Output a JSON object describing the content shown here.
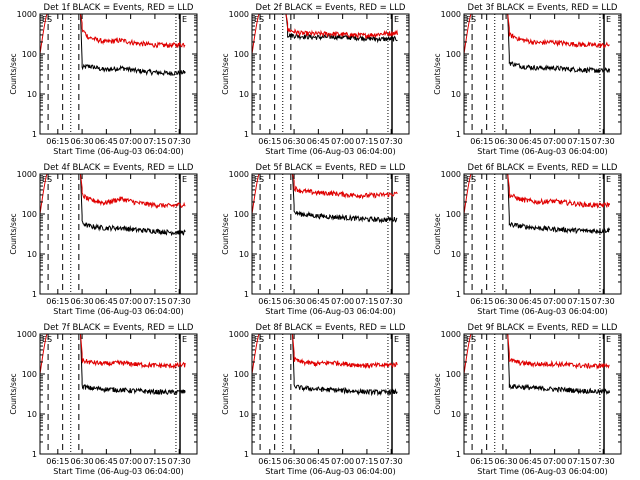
{
  "figure": {
    "x_axis_label": "Start Time (06-Aug-03 06:04:00)",
    "y_axis_label": "Counts/sec",
    "x_tick_labels": [
      "06:15",
      "06:30",
      "06:45",
      "07:00",
      "07:15",
      "07:30"
    ],
    "y_tick_labels": [
      "1",
      "10",
      "100",
      "1000"
    ],
    "marker_start": "ES",
    "marker_end": "E",
    "colors": {
      "events": "#000000",
      "lld": "#e00000",
      "axes": "#000000"
    }
  },
  "chart_data": [
    {
      "type": "line",
      "title": "Det 1f  BLACK = Events, RED = LLD",
      "xlabel": "Start Time (06-Aug-03 06:04:00)",
      "ylabel": "Counts/sec",
      "yscale": "log",
      "ylim": [
        1,
        1000
      ],
      "xlim": [
        "06:04",
        "07:41"
      ],
      "series": [
        {
          "name": "Events",
          "color": "black",
          "x_minutes": [
            26,
            30,
            40,
            50,
            60,
            70,
            80,
            90
          ],
          "values": [
            45,
            50,
            40,
            45,
            38,
            35,
            33,
            35
          ]
        },
        {
          "name": "LLD",
          "color": "red",
          "x_minutes": [
            26,
            30,
            40,
            50,
            60,
            70,
            80,
            90
          ],
          "values": [
            400,
            260,
            200,
            220,
            185,
            170,
            165,
            175
          ]
        }
      ]
    },
    {
      "type": "line",
      "title": "Det 2f  BLACK = Events, RED = LLD",
      "xlabel": "Start Time (06-Aug-03 06:04:00)",
      "ylabel": "Counts/sec",
      "yscale": "log",
      "ylim": [
        1,
        1000
      ],
      "xlim": [
        "06:04",
        "07:41"
      ],
      "series": [
        {
          "name": "Events",
          "color": "black",
          "x_minutes": [
            22,
            30,
            40,
            50,
            60,
            70,
            80,
            90
          ],
          "values": [
            300,
            280,
            260,
            270,
            260,
            250,
            235,
            240
          ]
        },
        {
          "name": "LLD",
          "color": "red",
          "x_minutes": [
            22,
            30,
            40,
            50,
            60,
            70,
            80,
            90
          ],
          "values": [
            400,
            330,
            320,
            320,
            300,
            290,
            320,
            340
          ]
        }
      ]
    },
    {
      "type": "line",
      "title": "Det 3f  BLACK = Events, RED = LLD",
      "xlabel": "Start Time (06-Aug-03 06:04:00)",
      "ylabel": "Counts/sec",
      "yscale": "log",
      "ylim": [
        1,
        1000
      ],
      "xlim": [
        "06:04",
        "07:41"
      ],
      "series": [
        {
          "name": "Events",
          "color": "black",
          "x_minutes": [
            28,
            35,
            45,
            55,
            65,
            75,
            85,
            90
          ],
          "values": [
            60,
            50,
            45,
            45,
            42,
            40,
            38,
            40
          ]
        },
        {
          "name": "LLD",
          "color": "red",
          "x_minutes": [
            28,
            35,
            45,
            55,
            65,
            75,
            85,
            90
          ],
          "values": [
            300,
            230,
            190,
            200,
            180,
            170,
            165,
            170
          ]
        }
      ]
    },
    {
      "type": "line",
      "title": "Det 4f  BLACK = Events, RED = LLD",
      "xlabel": "Start Time (06-Aug-03 06:04:00)",
      "ylabel": "Counts/sec",
      "yscale": "log",
      "ylim": [
        1,
        1000
      ],
      "xlim": [
        "06:04",
        "07:41"
      ],
      "series": [
        {
          "name": "Events",
          "color": "black",
          "x_minutes": [
            26,
            30,
            40,
            50,
            60,
            70,
            80,
            90
          ],
          "values": [
            60,
            50,
            45,
            45,
            40,
            38,
            35,
            35
          ]
        },
        {
          "name": "LLD",
          "color": "red",
          "x_minutes": [
            26,
            30,
            40,
            50,
            60,
            70,
            80,
            90
          ],
          "values": [
            300,
            230,
            190,
            240,
            190,
            170,
            160,
            175
          ]
        }
      ]
    },
    {
      "type": "line",
      "title": "Det 5f  BLACK = Events, RED = LLD",
      "xlabel": "Start Time (06-Aug-03 06:04:00)",
      "ylabel": "Counts/sec",
      "yscale": "log",
      "ylim": [
        1,
        1000
      ],
      "xlim": [
        "06:04",
        "07:41"
      ],
      "series": [
        {
          "name": "Events",
          "color": "black",
          "x_minutes": [
            26,
            30,
            40,
            50,
            60,
            70,
            80,
            90
          ],
          "values": [
            110,
            100,
            90,
            85,
            80,
            75,
            72,
            75
          ]
        },
        {
          "name": "LLD",
          "color": "red",
          "x_minutes": [
            26,
            30,
            40,
            50,
            60,
            70,
            80,
            90
          ],
          "values": [
            450,
            380,
            340,
            330,
            300,
            290,
            300,
            320
          ]
        }
      ]
    },
    {
      "type": "line",
      "title": "Det 6f  BLACK = Events, RED = LLD",
      "xlabel": "Start Time (06-Aug-03 06:04:00)",
      "ylabel": "Counts/sec",
      "yscale": "log",
      "ylim": [
        1,
        1000
      ],
      "xlim": [
        "06:04",
        "07:41"
      ],
      "series": [
        {
          "name": "Events",
          "color": "black",
          "x_minutes": [
            28,
            35,
            45,
            55,
            65,
            75,
            85,
            90
          ],
          "values": [
            55,
            50,
            45,
            42,
            40,
            38,
            38,
            40
          ]
        },
        {
          "name": "LLD",
          "color": "red",
          "x_minutes": [
            28,
            35,
            45,
            55,
            65,
            75,
            85,
            90
          ],
          "values": [
            300,
            230,
            200,
            210,
            190,
            170,
            165,
            175
          ]
        }
      ]
    },
    {
      "type": "line",
      "title": "Det 7f  BLACK = Events, RED = LLD",
      "xlabel": "Start Time (06-Aug-03 06:04:00)",
      "ylabel": "Counts/sec",
      "yscale": "log",
      "ylim": [
        1,
        1000
      ],
      "xlim": [
        "06:04",
        "07:41"
      ],
      "series": [
        {
          "name": "Events",
          "color": "black",
          "x_minutes": [
            26,
            30,
            40,
            50,
            60,
            70,
            80,
            90
          ],
          "values": [
            50,
            45,
            42,
            40,
            38,
            36,
            35,
            36
          ]
        },
        {
          "name": "LLD",
          "color": "red",
          "x_minutes": [
            26,
            30,
            40,
            50,
            60,
            70,
            80,
            90
          ],
          "values": [
            220,
            200,
            180,
            190,
            175,
            165,
            160,
            170
          ]
        }
      ]
    },
    {
      "type": "line",
      "title": "Det 8f  BLACK = Events, RED = LLD",
      "xlabel": "Start Time (06-Aug-03 06:04:00)",
      "ylabel": "Counts/sec",
      "yscale": "log",
      "ylim": [
        1,
        1000
      ],
      "xlim": [
        "06:04",
        "07:41"
      ],
      "series": [
        {
          "name": "Events",
          "color": "black",
          "x_minutes": [
            26,
            30,
            40,
            50,
            60,
            70,
            80,
            90
          ],
          "values": [
            50,
            45,
            42,
            40,
            38,
            36,
            35,
            36
          ]
        },
        {
          "name": "LLD",
          "color": "red",
          "x_minutes": [
            26,
            30,
            40,
            50,
            60,
            70,
            80,
            90
          ],
          "values": [
            230,
            200,
            180,
            195,
            175,
            165,
            165,
            175
          ]
        }
      ]
    },
    {
      "type": "line",
      "title": "Det 9f  BLACK = Events, RED = LLD",
      "xlabel": "Start Time (06-Aug-03 06:04:00)",
      "ylabel": "Counts/sec",
      "yscale": "log",
      "ylim": [
        1,
        1000
      ],
      "xlim": [
        "06:04",
        "07:41"
      ],
      "series": [
        {
          "name": "Events",
          "color": "black",
          "x_minutes": [
            28,
            35,
            45,
            55,
            65,
            75,
            85,
            90
          ],
          "values": [
            50,
            48,
            44,
            42,
            40,
            38,
            36,
            38
          ]
        },
        {
          "name": "LLD",
          "color": "red",
          "x_minutes": [
            28,
            35,
            45,
            55,
            65,
            75,
            85,
            90
          ],
          "values": [
            220,
            190,
            175,
            180,
            170,
            160,
            160,
            170
          ]
        }
      ]
    }
  ]
}
